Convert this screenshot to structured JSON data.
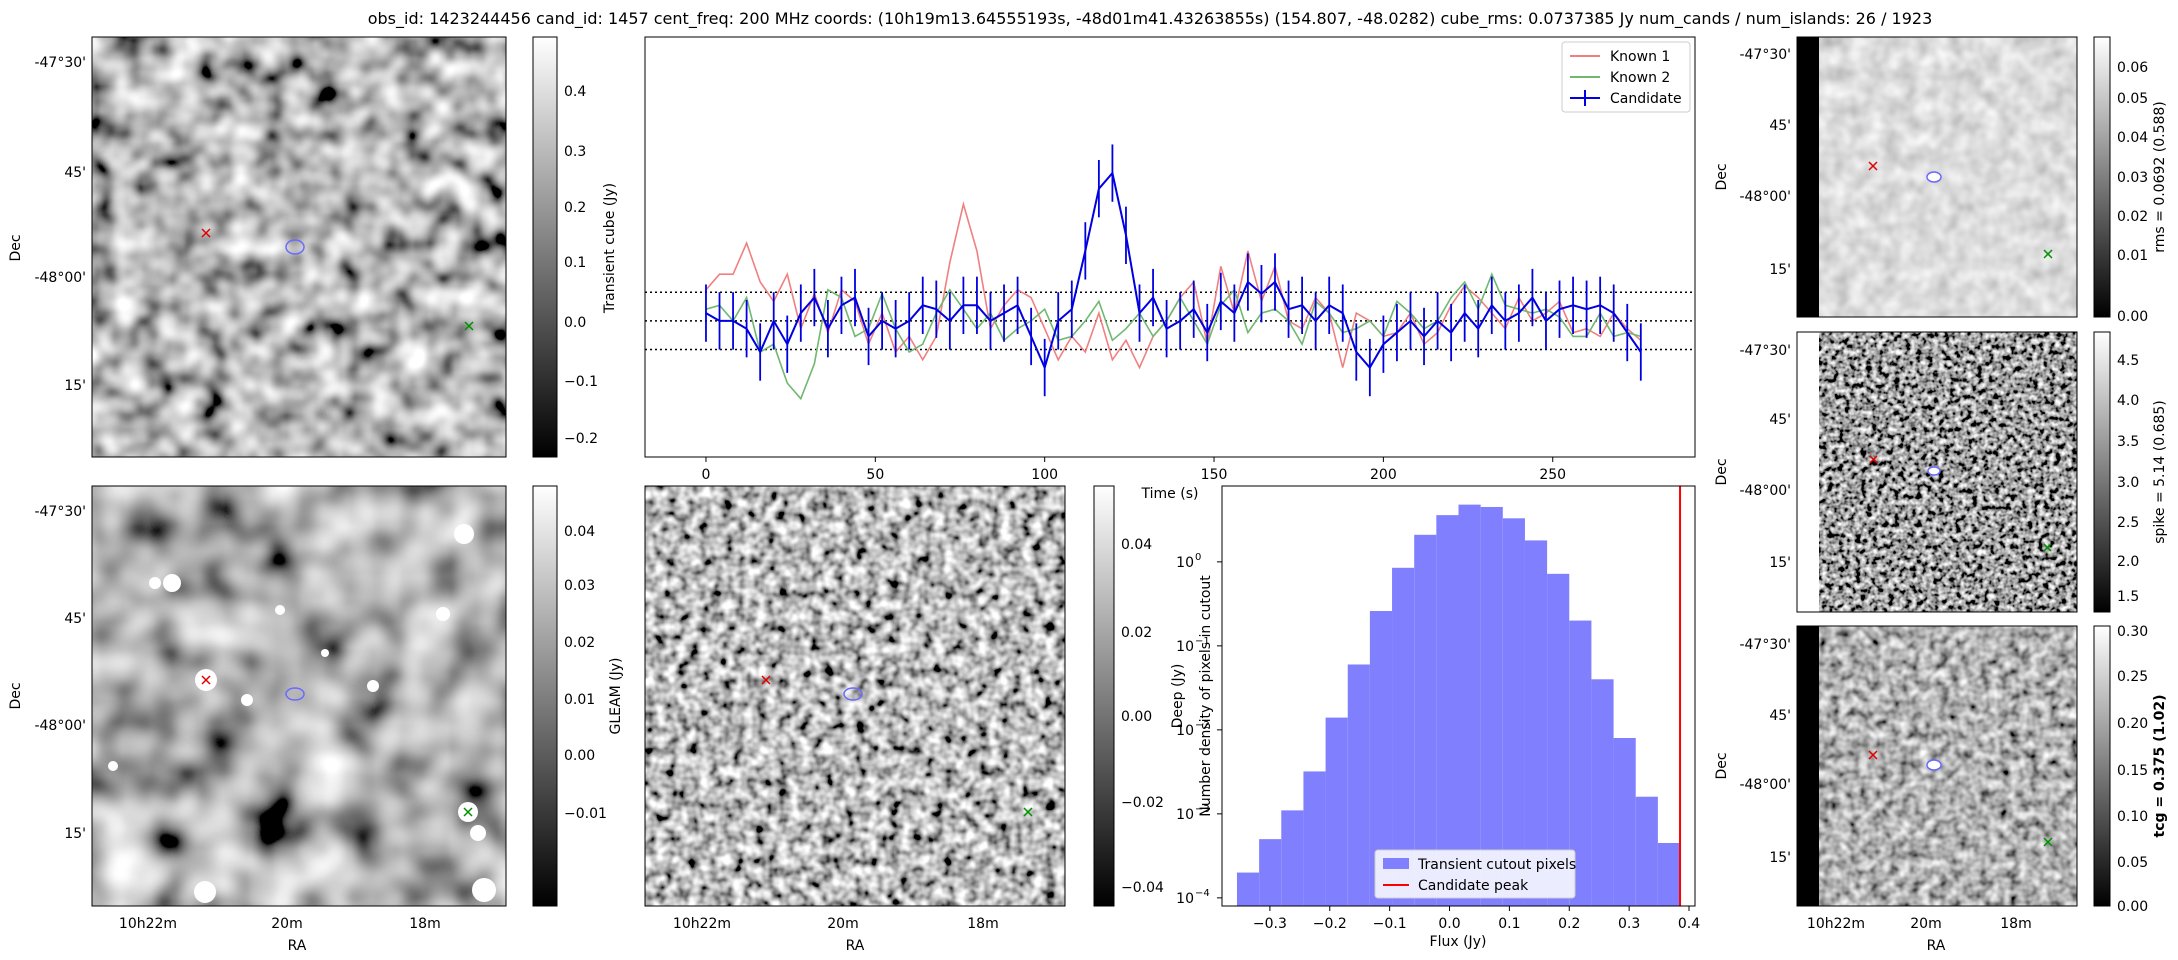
{
  "title": "obs_id: 1423244456 cand_id: 1457 cent_freq: 200 MHz coords: (10h19m13.64555193s, -48d01m41.43263855s) (154.807, -48.0282) cube_rms: 0.0737385 Jy num_cands / num_islands: 26 / 1923",
  "colors": {
    "known1": "#f08080",
    "known2": "#70b870",
    "candidate": "#0000e0",
    "hist": "#8080ff",
    "peak": "#ff0000"
  },
  "panels": {
    "transient": {
      "cbar_label": "Transient cube (Jy)",
      "cbar_ticks": [
        "0.4",
        "0.3",
        "0.2",
        "0.1",
        "0.0",
        "−0.1",
        "−0.2"
      ],
      "ylabel": "Dec",
      "dec_ticks": [
        "-47°30'",
        "45'",
        "-48°00'",
        "15'"
      ]
    },
    "gleam": {
      "cbar_label": "GLEAM (Jy)",
      "cbar_ticks": [
        "0.04",
        "0.03",
        "0.02",
        "0.01",
        "0.00",
        "−0.01"
      ],
      "ylabel": "Dec",
      "xlabel": "RA",
      "dec_ticks": [
        "-47°30'",
        "45'",
        "-48°00'",
        "15'"
      ],
      "ra_ticks": [
        "10h22m",
        "20m",
        "18m"
      ]
    },
    "deep": {
      "cbar_label": "Deep (Jy)",
      "cbar_ticks": [
        "0.04",
        "0.02",
        "0.00",
        "−0.02",
        "−0.04"
      ],
      "xlabel": "RA",
      "ra_ticks": [
        "10h22m",
        "20m",
        "18m"
      ]
    },
    "rms": {
      "cbar_label": "rms = 0.0692 (0.588)",
      "cbar_ticks": [
        "0.06",
        "0.05",
        "0.04",
        "0.03",
        "0.02",
        "0.01",
        "0.00"
      ],
      "ylabel": "Dec",
      "dec_ticks": [
        "-47°30'",
        "45'",
        "-48°00'",
        "15'"
      ]
    },
    "spike": {
      "cbar_label": "spike = 5.14 (0.685)",
      "cbar_ticks": [
        "4.5",
        "4.0",
        "3.5",
        "3.0",
        "2.5",
        "2.0",
        "1.5"
      ],
      "ylabel": "Dec",
      "dec_ticks": [
        "-47°30'",
        "45'",
        "-48°00'",
        "15'"
      ]
    },
    "tcg": {
      "cbar_label": "tcg = 0.375 (1.02)",
      "cbar_ticks": [
        "0.30",
        "0.25",
        "0.20",
        "0.15",
        "0.10",
        "0.05",
        "0.00"
      ],
      "ylabel": "Dec",
      "xlabel": "RA",
      "dec_ticks": [
        "-47°30'",
        "45'",
        "-48°00'",
        "15'"
      ],
      "ra_ticks": [
        "10h22m",
        "20m",
        "18m"
      ]
    }
  },
  "chart_data": [
    {
      "type": "line",
      "xlabel": "Time (s)",
      "ylabel": "",
      "xlim": [
        -18,
        292
      ],
      "ylim": [
        -0.35,
        0.73
      ],
      "xticks": [
        0,
        50,
        100,
        150,
        200,
        250
      ],
      "hlines": [
        0.0737,
        0.0,
        -0.0737
      ],
      "legend": [
        "Known 1",
        "Known 2",
        "Candidate"
      ],
      "legend_loc": "upper right",
      "series": [
        {
          "name": "Known 1",
          "x": [
            0,
            4,
            8,
            12,
            16,
            20,
            24,
            28,
            32,
            36,
            40,
            44,
            48,
            52,
            56,
            60,
            64,
            68,
            72,
            76,
            80,
            84,
            88,
            92,
            96,
            100,
            104,
            108,
            112,
            116,
            120,
            124,
            128,
            132,
            136,
            140,
            144,
            148,
            152,
            156,
            160,
            164,
            168,
            172,
            176,
            180,
            184,
            188,
            192,
            196,
            200,
            204,
            208,
            212,
            216,
            220,
            224,
            228,
            232,
            236,
            240,
            244,
            248,
            252,
            256,
            260,
            264,
            268,
            272,
            276
          ],
          "values": [
            0.08,
            0.12,
            0.12,
            0.2,
            0.1,
            0.05,
            0.12,
            -0.02,
            0.07,
            -0.03,
            0.08,
            0.05,
            -0.06,
            0.02,
            -0.08,
            -0.04,
            -0.1,
            -0.04,
            0.15,
            0.3,
            0.18,
            -0.02,
            0.04,
            0.08,
            0.06,
            -0.02,
            -0.1,
            -0.04,
            -0.08,
            0.02,
            -0.1,
            -0.05,
            -0.12,
            -0.04,
            0.0,
            0.06,
            0.1,
            -0.06,
            0.14,
            0.02,
            0.18,
            0.05,
            0.14,
            0.0,
            -0.02,
            0.06,
            0.02,
            -0.12,
            0.02,
            0.0,
            -0.04,
            -0.03,
            0.02,
            -0.06,
            -0.03,
            0.04,
            0.09,
            0.06,
            0.02,
            -0.02,
            0.06,
            0.0,
            0.02,
            0.05,
            -0.03,
            -0.02,
            -0.04,
            0.02,
            -0.02,
            -0.05
          ]
        },
        {
          "name": "Known 2",
          "x": [
            0,
            4,
            8,
            12,
            16,
            20,
            24,
            28,
            32,
            36,
            40,
            44,
            48,
            52,
            56,
            60,
            64,
            68,
            72,
            76,
            80,
            84,
            88,
            92,
            96,
            100,
            104,
            108,
            112,
            116,
            120,
            124,
            128,
            132,
            136,
            140,
            144,
            148,
            152,
            156,
            160,
            164,
            168,
            172,
            176,
            180,
            184,
            188,
            192,
            196,
            200,
            204,
            208,
            212,
            216,
            220,
            224,
            228,
            232,
            236,
            240,
            244,
            248,
            252,
            256,
            260,
            264,
            268,
            272,
            276
          ],
          "values": [
            0.03,
            0.04,
            0.0,
            0.06,
            -0.08,
            -0.06,
            -0.16,
            -0.2,
            -0.11,
            0.08,
            0.06,
            -0.04,
            -0.02,
            0.07,
            -0.02,
            -0.08,
            -0.06,
            0.02,
            0.08,
            0.03,
            -0.02,
            0.02,
            -0.05,
            -0.02,
            0.0,
            0.03,
            -0.05,
            -0.04,
            0.0,
            0.05,
            -0.05,
            -0.02,
            0.02,
            -0.04,
            0.0,
            0.06,
            0.0,
            -0.06,
            0.04,
            0.08,
            -0.03,
            0.02,
            0.03,
            0.0,
            -0.06,
            0.05,
            0.02,
            -0.03,
            -0.02,
            0.0,
            -0.04,
            0.05,
            0.02,
            -0.02,
            0.0,
            0.06,
            0.1,
            0.03,
            0.12,
            0.04,
            0.03,
            0.02,
            0.03,
            0.01,
            -0.04,
            -0.04,
            0.02,
            -0.04,
            -0.03,
            -0.04
          ]
        },
        {
          "name": "Candidate",
          "x": [
            0,
            4,
            8,
            12,
            16,
            20,
            24,
            28,
            32,
            36,
            40,
            44,
            48,
            52,
            56,
            60,
            64,
            68,
            72,
            76,
            80,
            84,
            88,
            92,
            96,
            100,
            104,
            108,
            112,
            116,
            120,
            124,
            128,
            132,
            136,
            140,
            144,
            148,
            152,
            156,
            160,
            164,
            168,
            172,
            176,
            180,
            184,
            188,
            192,
            196,
            200,
            204,
            208,
            212,
            216,
            220,
            224,
            228,
            232,
            236,
            240,
            244,
            248,
            252,
            256,
            260,
            264,
            268,
            272,
            276
          ],
          "values": [
            0.02,
            0.0,
            0.0,
            -0.02,
            -0.08,
            0.0,
            -0.06,
            0.02,
            0.06,
            -0.02,
            0.04,
            0.06,
            -0.04,
            0.0,
            -0.02,
            0.0,
            0.04,
            0.03,
            0.0,
            0.04,
            0.04,
            0.0,
            0.02,
            0.04,
            -0.04,
            -0.12,
            0.0,
            0.03,
            0.18,
            0.34,
            0.38,
            0.22,
            0.02,
            0.06,
            -0.02,
            0.0,
            0.03,
            -0.03,
            0.05,
            0.02,
            0.1,
            0.07,
            0.1,
            0.03,
            0.04,
            0.0,
            0.04,
            0.02,
            -0.08,
            -0.12,
            -0.06,
            -0.03,
            0.0,
            -0.04,
            0.0,
            -0.03,
            0.02,
            -0.02,
            0.04,
            0.0,
            0.02,
            0.06,
            0.0,
            0.03,
            0.04,
            0.03,
            0.04,
            0.02,
            -0.03,
            -0.08
          ],
          "err": 0.0737
        }
      ]
    },
    {
      "type": "bar",
      "xlabel": "Flux (Jy)",
      "ylabel": "Number density of pixels in cutout",
      "yscale": "log",
      "xlim": [
        -0.38,
        0.41
      ],
      "ylim": [
        8e-05,
        8
      ],
      "xticks": [
        -0.3,
        -0.2,
        -0.1,
        0.0,
        0.1,
        0.2,
        0.3,
        0.4
      ],
      "yticks": [
        "10^-4",
        "10^-3",
        "10^-2",
        "10^-1",
        "10^0"
      ],
      "bin_edges": [
        -0.355,
        -0.318,
        -0.281,
        -0.244,
        -0.207,
        -0.17,
        -0.133,
        -0.096,
        -0.059,
        -0.022,
        0.015,
        0.052,
        0.089,
        0.126,
        0.163,
        0.2,
        0.237,
        0.274,
        0.311,
        0.348,
        0.385
      ],
      "values": [
        0.0002,
        0.0005,
        0.0011,
        0.0032,
        0.014,
        0.06,
        0.26,
        0.85,
        2.1,
        3.6,
        4.8,
        4.5,
        3.3,
        1.8,
        0.72,
        0.2,
        0.04,
        0.008,
        0.0016,
        0.00045
      ],
      "vline": 0.385,
      "legend": [
        "Transient cutout pixels",
        "Candidate peak"
      ],
      "legend_loc": "lower center"
    }
  ]
}
